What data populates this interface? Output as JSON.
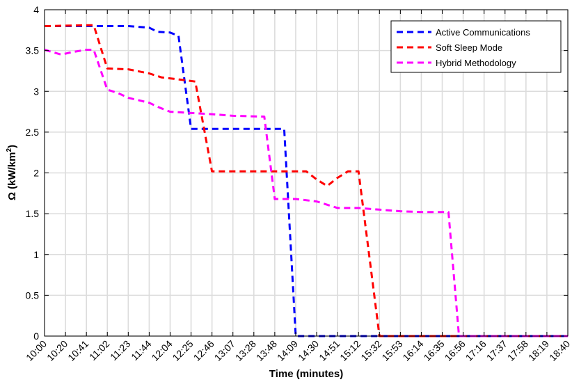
{
  "chart_data": {
    "type": "line",
    "title": "",
    "xlabel": "Time (minutes)",
    "ylabel_main": "Ω (kW/km",
    "ylabel_sup": "2",
    "ylabel_tail": ")",
    "x_ticks": [
      "10:00",
      "10:20",
      "10:41",
      "11:02",
      "11:23",
      "11:44",
      "12:04",
      "12:25",
      "12:46",
      "13:07",
      "13:28",
      "13:48",
      "14:09",
      "14:30",
      "14:51",
      "15:12",
      "15:32",
      "15:53",
      "16:14",
      "16:35",
      "16:56",
      "17:16",
      "17:37",
      "17:58",
      "18:19",
      "18:40"
    ],
    "y_ticks": [
      "0",
      "0.5",
      "1",
      "1.5",
      "2",
      "2.5",
      "3",
      "3.5",
      "4"
    ],
    "ylim": [
      0,
      4
    ],
    "grid": true,
    "legend_position": "top-right",
    "series": [
      {
        "name": "Active Communications",
        "color": "#0000ff",
        "points": [
          [
            0,
            3.8
          ],
          [
            1,
            3.8
          ],
          [
            2,
            3.8
          ],
          [
            3,
            3.8
          ],
          [
            4,
            3.8
          ],
          [
            5,
            3.78
          ],
          [
            5.4,
            3.73
          ],
          [
            6,
            3.72
          ],
          [
            6.4,
            3.68
          ],
          [
            7,
            2.54
          ],
          [
            11.45,
            2.54
          ],
          [
            12,
            0
          ],
          [
            25,
            0
          ]
        ]
      },
      {
        "name": "Soft Sleep Mode",
        "color": "#ff0000",
        "points": [
          [
            0,
            3.8
          ],
          [
            2,
            3.81
          ],
          [
            2.35,
            3.81
          ],
          [
            3,
            3.28
          ],
          [
            4,
            3.27
          ],
          [
            5,
            3.22
          ],
          [
            5.6,
            3.17
          ],
          [
            6.3,
            3.15
          ],
          [
            7.2,
            3.12
          ],
          [
            8,
            2.02
          ],
          [
            12.5,
            2.02
          ],
          [
            13,
            1.92
          ],
          [
            13.5,
            1.84
          ],
          [
            14,
            1.94
          ],
          [
            14.5,
            2.02
          ],
          [
            15,
            2.02
          ],
          [
            16,
            0
          ],
          [
            25,
            0
          ]
        ]
      },
      {
        "name": "Hybrid Methodology",
        "color": "#ff00ff",
        "points": [
          [
            0,
            3.51
          ],
          [
            0.8,
            3.45
          ],
          [
            1.3,
            3.48
          ],
          [
            2,
            3.51
          ],
          [
            2.35,
            3.51
          ],
          [
            3,
            3.02
          ],
          [
            3.5,
            2.98
          ],
          [
            4,
            2.92
          ],
          [
            4.5,
            2.89
          ],
          [
            5,
            2.86
          ],
          [
            5.5,
            2.8
          ],
          [
            6,
            2.75
          ],
          [
            8,
            2.72
          ],
          [
            9,
            2.7
          ],
          [
            10.5,
            2.69
          ],
          [
            11,
            1.68
          ],
          [
            12,
            1.68
          ],
          [
            13,
            1.65
          ],
          [
            14,
            1.57
          ],
          [
            15,
            1.57
          ],
          [
            16,
            1.55
          ],
          [
            17,
            1.53
          ],
          [
            18,
            1.52
          ],
          [
            19.3,
            1.52
          ],
          [
            19.8,
            0
          ],
          [
            25,
            0
          ]
        ]
      }
    ]
  }
}
